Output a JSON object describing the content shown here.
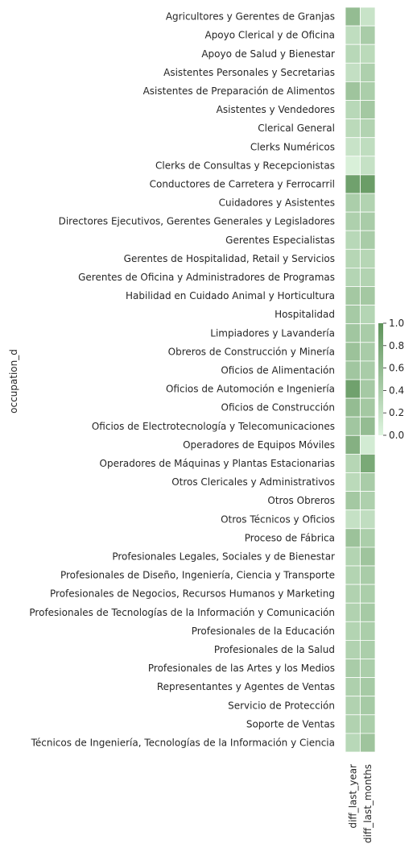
{
  "chart_data": {
    "type": "heatmap",
    "ylabel": "occupation_d",
    "xlabel": "",
    "columns": [
      "diff_last_year",
      "diff_last_months"
    ],
    "rows": [
      "Agricultores y Gerentes de Granjas",
      "Apoyo Clerical y de Oficina",
      "Apoyo de Salud y Bienestar",
      "Asistentes Personales y Secretarias",
      "Asistentes de Preparación de Alimentos",
      "Asistentes y Vendedores",
      "Clerical General",
      "Clerks Numéricos",
      "Clerks de Consultas y Recepcionistas",
      "Conductores de Carretera y Ferrocarril",
      "Cuidadores y Asistentes",
      "Directores Ejecutivos, Gerentes Generales y Legisladores",
      "Gerentes Especialistas",
      "Gerentes de Hospitalidad, Retail y Servicios",
      "Gerentes de Oficina y Administradores de Programas",
      "Habilidad en Cuidado Animal y Horticultura",
      "Hospitalidad",
      "Limpiadores y Lavandería",
      "Obreros de Construcción y Minería",
      "Oficios de Alimentación",
      "Oficios de Automoción e Ingeniería",
      "Oficios de Construcción",
      "Oficios de Electrotecnología y Telecomunicaciones",
      "Operadores de Equipos Móviles",
      "Operadores de Máquinas y Plantas Estacionarias",
      "Otros Clericales y Administrativos",
      "Otros Obreros",
      "Otros Técnicos y Oficios",
      "Proceso de Fábrica",
      "Profesionales Legales, Sociales y de Bienestar",
      "Profesionales de Diseño, Ingeniería, Ciencia y Transporte",
      "Profesionales de Negocios, Recursos Humanos y Marketing",
      "Profesionales de Tecnologías de la Información y Comunicación",
      "Profesionales de la Educación",
      "Profesionales de la Salud",
      "Profesionales de las Artes y los Medios",
      "Representantes y Agentes de Ventas",
      "Servicio de Protección",
      "Soporte de Ventas",
      "Técnicos de Ingeniería, Tecnologías de la Información y Ciencia"
    ],
    "values": [
      [
        0.58,
        0.18
      ],
      [
        0.25,
        0.42
      ],
      [
        0.3,
        0.28
      ],
      [
        0.22,
        0.38
      ],
      [
        0.5,
        0.4
      ],
      [
        0.3,
        0.46
      ],
      [
        0.28,
        0.35
      ],
      [
        0.18,
        0.25
      ],
      [
        0.05,
        0.2
      ],
      [
        0.86,
        0.9
      ],
      [
        0.4,
        0.35
      ],
      [
        0.38,
        0.42
      ],
      [
        0.3,
        0.42
      ],
      [
        0.32,
        0.32
      ],
      [
        0.33,
        0.35
      ],
      [
        0.46,
        0.46
      ],
      [
        0.44,
        0.33
      ],
      [
        0.48,
        0.42
      ],
      [
        0.52,
        0.42
      ],
      [
        0.48,
        0.42
      ],
      [
        0.86,
        0.45
      ],
      [
        0.58,
        0.46
      ],
      [
        0.48,
        0.58
      ],
      [
        0.7,
        0.1
      ],
      [
        0.32,
        0.78
      ],
      [
        0.28,
        0.42
      ],
      [
        0.46,
        0.38
      ],
      [
        0.2,
        0.24
      ],
      [
        0.52,
        0.4
      ],
      [
        0.34,
        0.5
      ],
      [
        0.34,
        0.42
      ],
      [
        0.36,
        0.4
      ],
      [
        0.36,
        0.44
      ],
      [
        0.34,
        0.4
      ],
      [
        0.36,
        0.4
      ],
      [
        0.42,
        0.4
      ],
      [
        0.38,
        0.44
      ],
      [
        0.36,
        0.44
      ],
      [
        0.36,
        0.4
      ],
      [
        0.3,
        0.5
      ]
    ],
    "colorbar": {
      "min": 0.0,
      "max": 1.0,
      "ticks": [
        "0.0",
        "0.2",
        "0.4",
        "0.6",
        "0.8",
        "1.0"
      ],
      "color_low": "#dff5e0",
      "color_high": "#5e935a"
    },
    "grid": false
  }
}
